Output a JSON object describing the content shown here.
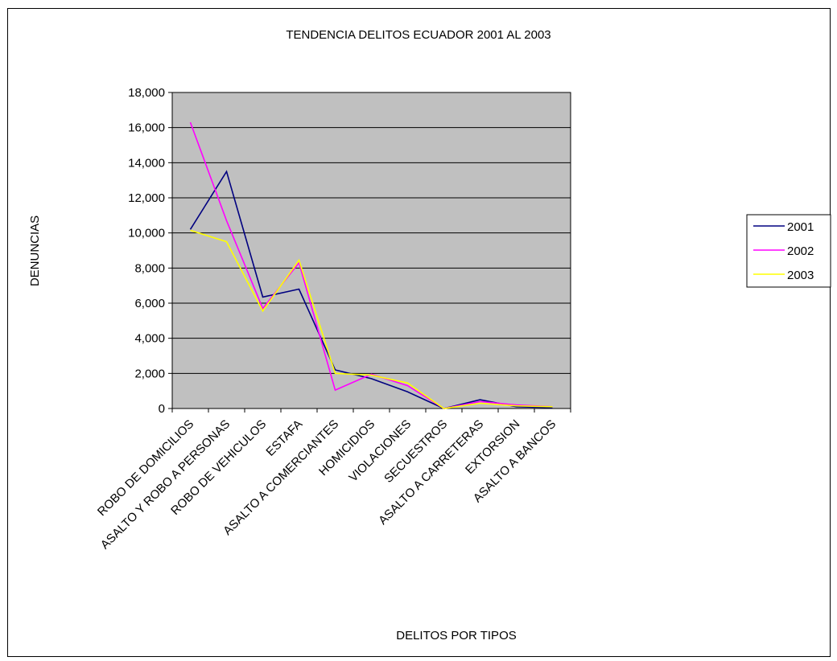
{
  "chart_data": {
    "type": "line",
    "title": "TENDENCIA DELITOS ECUADOR 2001 AL 2003",
    "xlabel": "DELITOS POR TIPOS",
    "ylabel": "DENUNCIAS",
    "ylim": [
      0,
      18000
    ],
    "y_ticks": [
      "0",
      "2,000",
      "4,000",
      "6,000",
      "8,000",
      "10,000",
      "12,000",
      "14,000",
      "16,000",
      "18,000"
    ],
    "categories": [
      "ROBO DE DOMICILIOS",
      "ASALTO Y ROBO A PERSONAS",
      "ROBO DE VEHICULOS",
      "ESTAFA",
      "ASALTO A COMERCIANTES",
      "HOMICIDIOS",
      "VIOLACIONES",
      "SECUESTROS",
      "ASALTO A CARRETERAS",
      "EXTORSION",
      "ASALTO A BANCOS"
    ],
    "series": [
      {
        "name": "2001",
        "color": "#000080",
        "values": [
          10200,
          13500,
          6350,
          6800,
          2200,
          1700,
          950,
          0,
          500,
          100,
          50
        ]
      },
      {
        "name": "2002",
        "color": "#ff00ff",
        "values": [
          16300,
          10700,
          5700,
          8300,
          1050,
          1950,
          1300,
          0,
          400,
          200,
          100
        ]
      },
      {
        "name": "2003",
        "color": "#ffff00",
        "values": [
          10150,
          9500,
          5550,
          8450,
          2000,
          1900,
          1450,
          0,
          300,
          150,
          100
        ]
      }
    ],
    "grid": true,
    "legend": "right",
    "plot_background": "#c0c0c0"
  }
}
